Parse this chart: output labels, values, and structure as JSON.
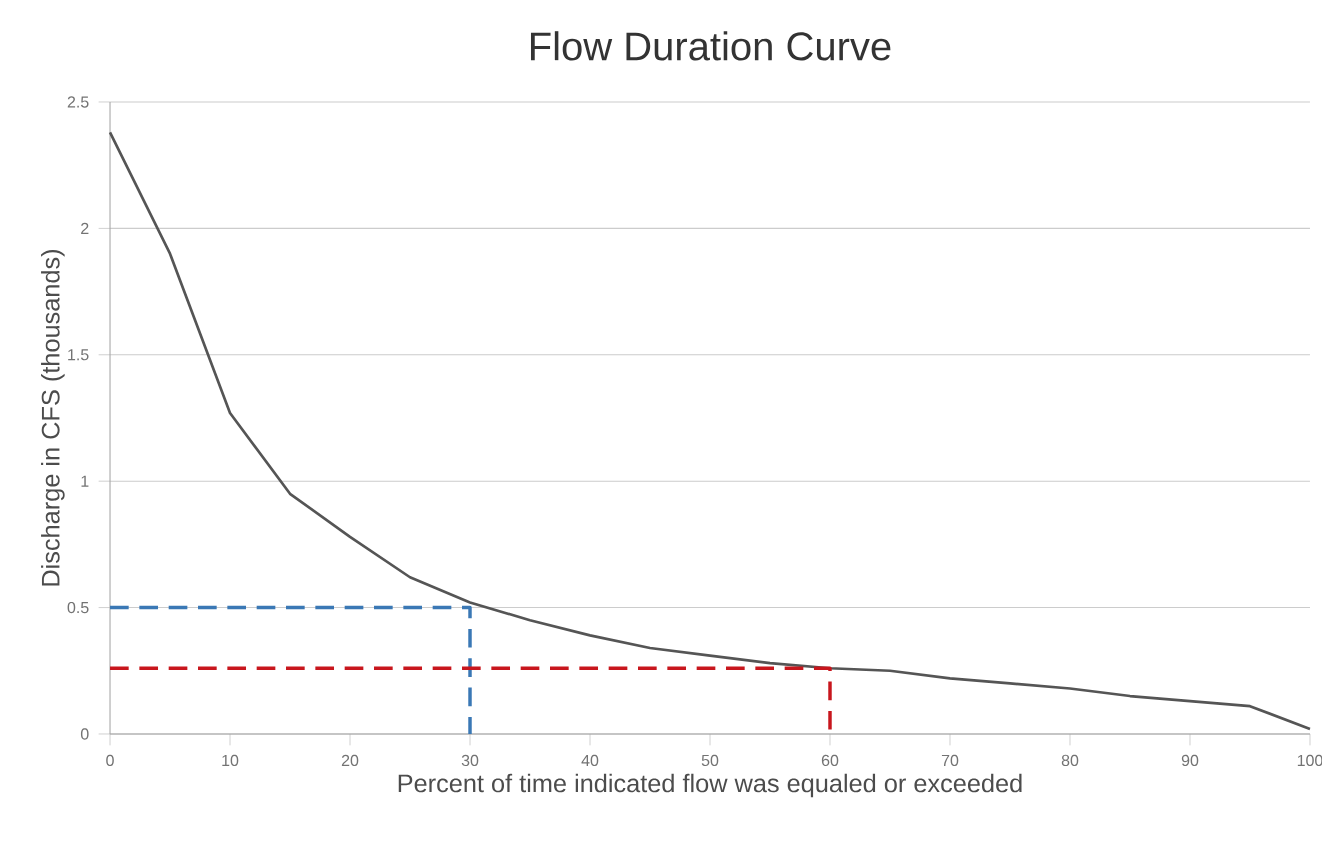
{
  "chart_data": {
    "type": "line",
    "title": "Flow Duration Curve",
    "xlabel": "Percent of time indicated flow was equaled or exceeded",
    "ylabel": "Discharge in CFS (thousands)",
    "xlim": [
      0,
      100
    ],
    "xticks": [
      0,
      10,
      20,
      30,
      40,
      50,
      60,
      70,
      80,
      90,
      100
    ],
    "ylim": [
      0,
      2.5
    ],
    "yticks": [
      0,
      0.5,
      1,
      1.5,
      2,
      2.5
    ],
    "grid": "y",
    "marker": "none",
    "series": [
      {
        "color": "#555555",
        "line_style": "solid",
        "x": [
          0,
          5,
          10,
          15,
          20,
          25,
          30,
          35,
          40,
          45,
          50,
          55,
          60,
          65,
          70,
          75,
          80,
          85,
          90,
          95,
          100
        ],
        "values": [
          2.38,
          1.9,
          1.27,
          0.95,
          0.78,
          0.62,
          0.52,
          0.45,
          0.39,
          0.34,
          0.31,
          0.28,
          0.26,
          0.25,
          0.22,
          0.2,
          0.18,
          0.15,
          0.13,
          0.11,
          0.02
        ]
      },
      {
        "color": "#3a78b5",
        "line_style": "dashed",
        "x": [
          0,
          30,
          30
        ],
        "values": [
          0.5,
          0.5,
          0
        ]
      },
      {
        "color": "#c8161d",
        "line_style": "dashed",
        "x": [
          0,
          60,
          60
        ],
        "values": [
          0.26,
          0.26,
          0
        ]
      }
    ]
  }
}
